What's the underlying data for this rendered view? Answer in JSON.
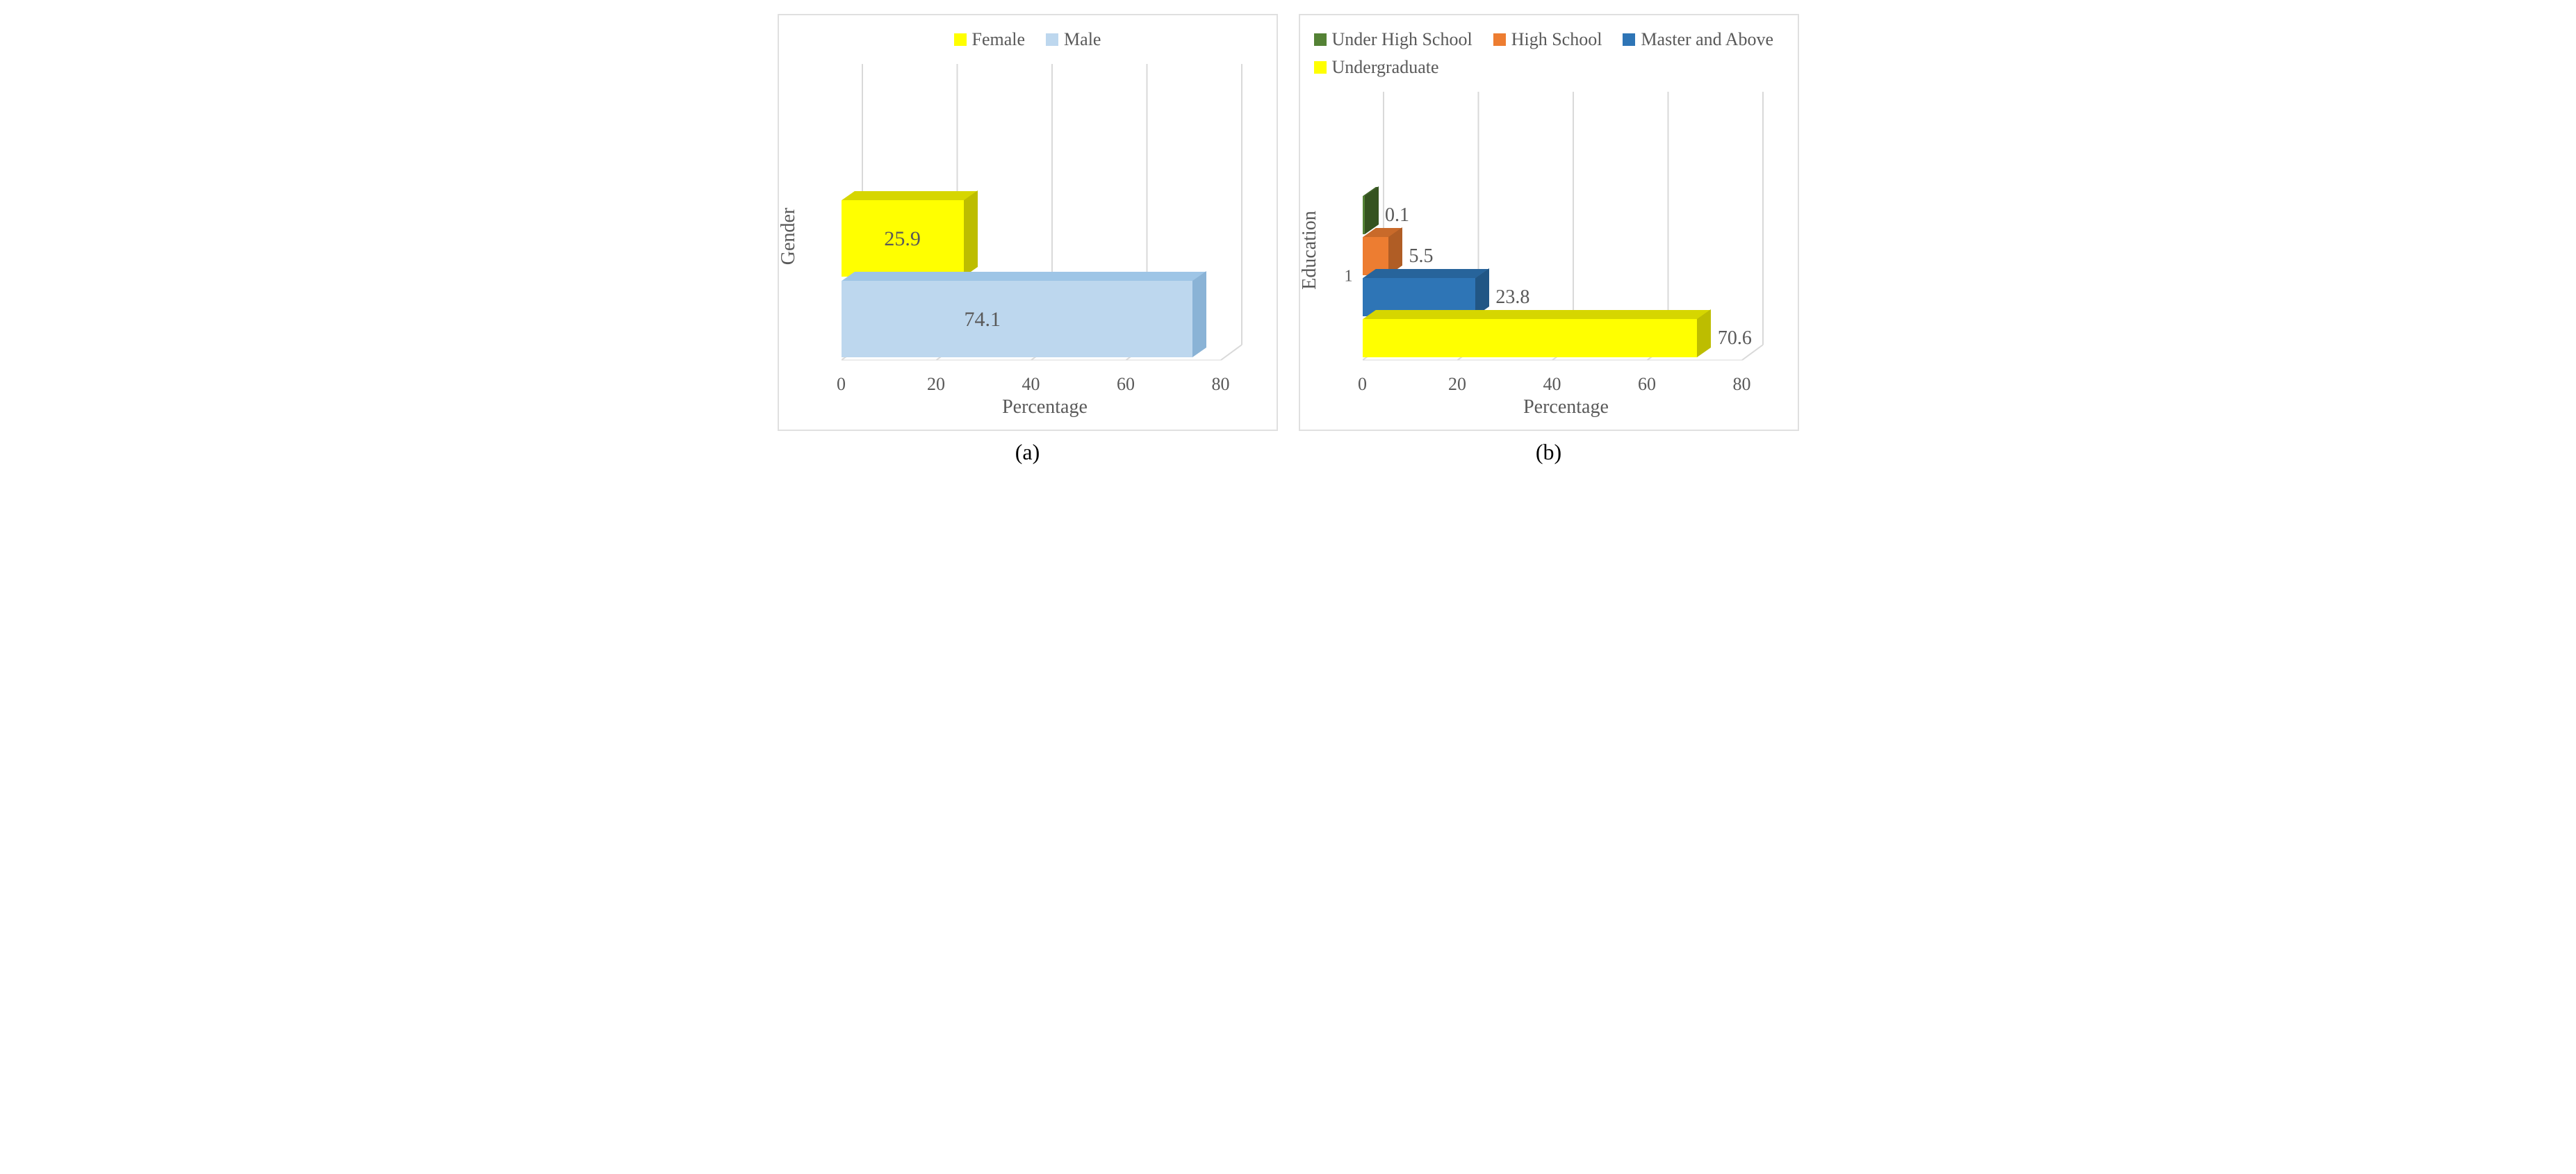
{
  "panel_a": {
    "type": "bar",
    "orientation": "horizontal",
    "style_3d": true,
    "xlim": [
      0,
      80
    ],
    "xtick_step": 20,
    "xticks": [
      0,
      20,
      40,
      60,
      80
    ],
    "xlabel": "Percentage",
    "ylabel": "Gender",
    "caption": "(a)",
    "background_color": "#ffffff",
    "border_color": "#e0e0e0",
    "grid_color": "#d9d9d9",
    "text_color": "#595959",
    "label_fontsize": 28,
    "tick_fontsize": 26,
    "data_label_fontsize": 30,
    "legend": [
      {
        "name": "Female",
        "color": "#ffff00",
        "top_color": "#d6d600",
        "side_color": "#bdbd00"
      },
      {
        "name": "Male",
        "color": "#bdd7ee",
        "top_color": "#9ec5e6",
        "side_color": "#8ab3d6"
      }
    ],
    "bars": [
      {
        "label": "Female",
        "value": 25.9,
        "color": "#ffff00",
        "top_color": "#d6d600",
        "side_color": "#bdbd00",
        "value_label": "25.9"
      },
      {
        "label": "Male",
        "value": 74.1,
        "color": "#bdd7ee",
        "top_color": "#9ec5e6",
        "side_color": "#8ab3d6",
        "value_label": "74.1"
      }
    ]
  },
  "panel_b": {
    "type": "bar",
    "orientation": "horizontal",
    "style_3d": true,
    "xlim": [
      0,
      80
    ],
    "xtick_step": 20,
    "xticks": [
      0,
      20,
      40,
      60,
      80
    ],
    "xlabel": "Percentage",
    "ylabel": "Education",
    "ytick_label": "1",
    "caption": "(b)",
    "background_color": "#ffffff",
    "border_color": "#e0e0e0",
    "grid_color": "#d9d9d9",
    "text_color": "#595959",
    "label_fontsize": 28,
    "tick_fontsize": 26,
    "data_label_fontsize": 26,
    "legend": [
      {
        "name": "Under High School",
        "color": "#548235",
        "top_color": "#3f6228",
        "side_color": "#355320"
      },
      {
        "name": "High School",
        "color": "#ed7d31",
        "top_color": "#c96a2a",
        "side_color": "#b05d25"
      },
      {
        "name": "Master and Above",
        "color": "#2e75b6",
        "top_color": "#27649b",
        "side_color": "#215685"
      },
      {
        "name": "Undergraduate",
        "color": "#ffff00",
        "top_color": "#d6d600",
        "side_color": "#bdbd00"
      }
    ],
    "bars": [
      {
        "label": "Under High School",
        "value": 0.1,
        "color": "#548235",
        "top_color": "#3f6228",
        "side_color": "#355320",
        "value_label": "0.1"
      },
      {
        "label": "High School",
        "value": 5.5,
        "color": "#ed7d31",
        "top_color": "#c96a2a",
        "side_color": "#b05d25",
        "value_label": "5.5"
      },
      {
        "label": "Master and Above",
        "value": 23.8,
        "color": "#2e75b6",
        "top_color": "#27649b",
        "side_color": "#215685",
        "value_label": "23.8"
      },
      {
        "label": "Undergraduate",
        "value": 70.6,
        "color": "#ffff00",
        "top_color": "#d6d600",
        "side_color": "#bdbd00",
        "value_label": "70.6"
      }
    ]
  }
}
